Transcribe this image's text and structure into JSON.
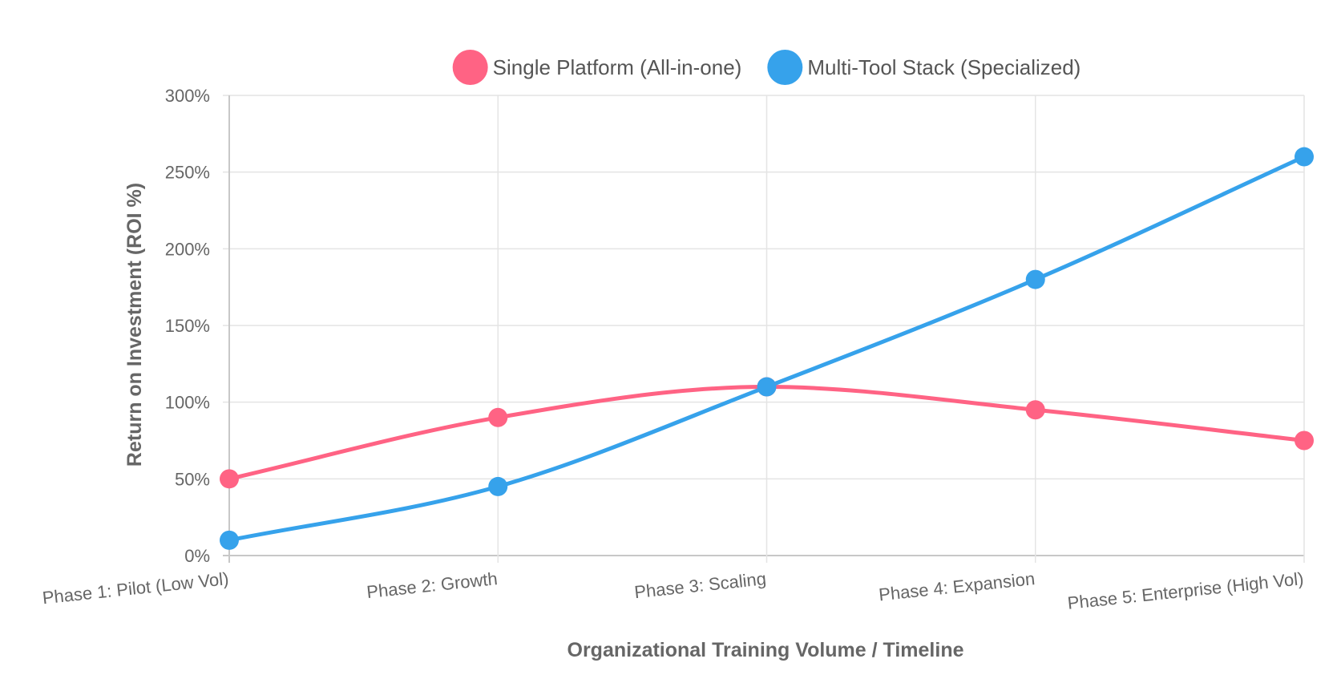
{
  "chart_data": {
    "type": "line",
    "categories": [
      "Phase 1: Pilot (Low Vol)",
      "Phase 2: Growth",
      "Phase 3: Scaling",
      "Phase 4: Expansion",
      "Phase 5: Enterprise (High Vol)"
    ],
    "series": [
      {
        "name": "Single Platform (All-in-one)",
        "color": "#ff6384",
        "values": [
          50,
          90,
          110,
          95,
          75
        ]
      },
      {
        "name": "Multi-Tool Stack (Specialized)",
        "color": "#36a2eb",
        "values": [
          10,
          45,
          110,
          180,
          260
        ]
      }
    ],
    "xlabel": "Organizational Training Volume / Timeline",
    "ylabel": "Return on Investment (ROI %)",
    "ylim": [
      0,
      300
    ],
    "yticks": [
      {
        "value": 0,
        "label": "0%"
      },
      {
        "value": 50,
        "label": "50%"
      },
      {
        "value": 100,
        "label": "100%"
      },
      {
        "value": 150,
        "label": "150%"
      },
      {
        "value": 200,
        "label": "200%"
      },
      {
        "value": 250,
        "label": "250%"
      },
      {
        "value": 300,
        "label": "300%"
      }
    ],
    "grid": true,
    "legend_position": "top"
  }
}
